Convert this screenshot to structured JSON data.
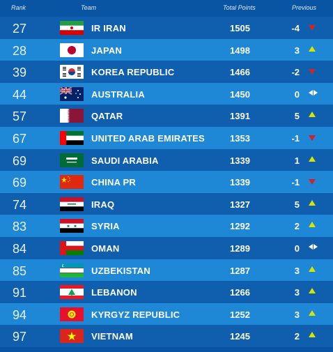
{
  "headers": {
    "rank": "Rank",
    "team": "Team",
    "points": "Total Points",
    "previous": "Previous"
  },
  "rows": [
    {
      "rank": "27",
      "team": "IR IRAN",
      "points": "1505",
      "change": "-4",
      "trend": "down",
      "flag": "iran",
      "style": "dark"
    },
    {
      "rank": "28",
      "team": "JAPAN",
      "points": "1498",
      "change": "3",
      "trend": "up",
      "flag": "japan",
      "style": "light"
    },
    {
      "rank": "39",
      "team": "KOREA REPUBLIC",
      "points": "1466",
      "change": "-2",
      "trend": "down",
      "flag": "korea",
      "style": "dark"
    },
    {
      "rank": "44",
      "team": "AUSTRALIA",
      "points": "1450",
      "change": "0",
      "trend": "same",
      "flag": "australia",
      "style": "light"
    },
    {
      "rank": "57",
      "team": "QATAR",
      "points": "1391",
      "change": "5",
      "trend": "up",
      "flag": "qatar",
      "style": "dark"
    },
    {
      "rank": "67",
      "team": "UNITED ARAB EMIRATES",
      "points": "1353",
      "change": "-1",
      "trend": "down",
      "flag": "uae",
      "style": "light"
    },
    {
      "rank": "69",
      "team": "SAUDI ARABIA",
      "points": "1339",
      "change": "1",
      "trend": "up",
      "flag": "saudi",
      "style": "dark"
    },
    {
      "rank": "69",
      "team": "CHINA PR",
      "points": "1339",
      "change": "-1",
      "trend": "down",
      "flag": "china",
      "style": "light"
    },
    {
      "rank": "74",
      "team": "IRAQ",
      "points": "1327",
      "change": "5",
      "trend": "up",
      "flag": "iraq",
      "style": "dark"
    },
    {
      "rank": "83",
      "team": "SYRIA",
      "points": "1292",
      "change": "2",
      "trend": "up",
      "flag": "syria",
      "style": "light"
    },
    {
      "rank": "84",
      "team": "OMAN",
      "points": "1289",
      "change": "0",
      "trend": "same",
      "flag": "oman",
      "style": "dark"
    },
    {
      "rank": "85",
      "team": "UZBEKISTAN",
      "points": "1287",
      "change": "3",
      "trend": "up",
      "flag": "uzbekistan",
      "style": "light"
    },
    {
      "rank": "91",
      "team": "LEBANON",
      "points": "1266",
      "change": "3",
      "trend": "up",
      "flag": "lebanon",
      "style": "dark"
    },
    {
      "rank": "94",
      "team": "KYRGYZ REPUBLIC",
      "points": "1252",
      "change": "3",
      "trend": "up",
      "flag": "kyrgyz",
      "style": "light"
    },
    {
      "rank": "97",
      "team": "VIETNAM",
      "points": "1245",
      "change": "2",
      "trend": "up",
      "flag": "vietnam",
      "style": "dark"
    }
  ]
}
